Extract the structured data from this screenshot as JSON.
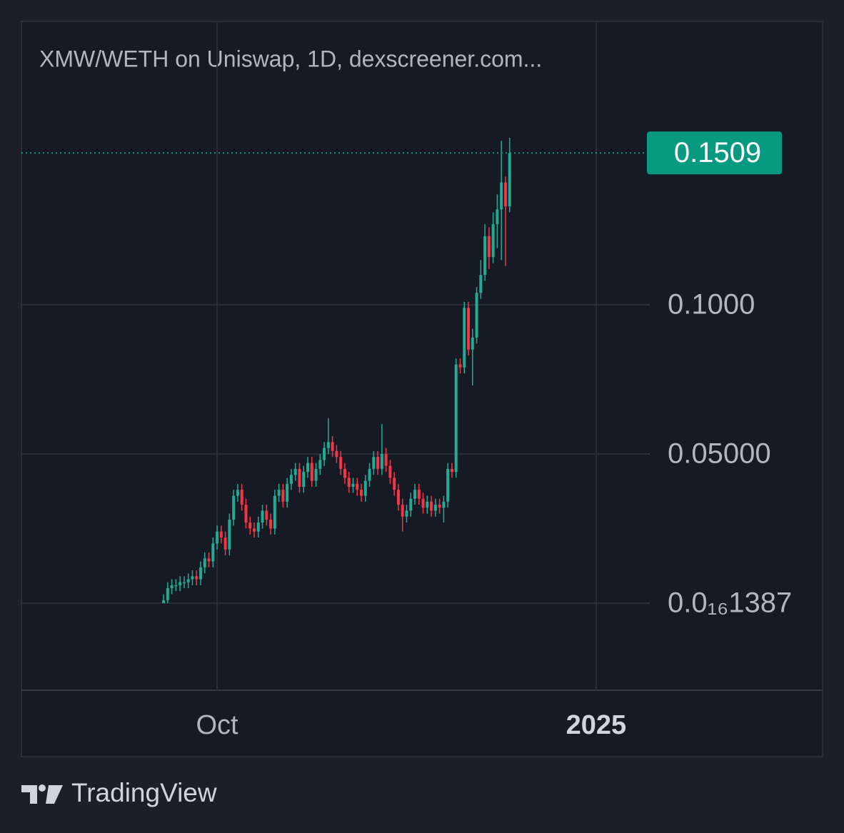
{
  "chart_data": {
    "type": "candlestick",
    "title": "XMW/WETH on Uniswap, 1D, dexscreener.com...",
    "x": [
      -13,
      -12,
      -11,
      -10,
      -9,
      -8,
      -7,
      -6,
      -5,
      -4,
      -3,
      -2,
      -1,
      0,
      1,
      2,
      3,
      4,
      5,
      6,
      7,
      8,
      9,
      10,
      11,
      12,
      13,
      14,
      15,
      16,
      17,
      18,
      19,
      20,
      21,
      22,
      23,
      24,
      25,
      26,
      27,
      28,
      29,
      30,
      31,
      32,
      33,
      34,
      35,
      36,
      37,
      38,
      39,
      40,
      41,
      42,
      43,
      44,
      45,
      46,
      47,
      48,
      49,
      50,
      51,
      52,
      53,
      54,
      55,
      56,
      57,
      58,
      59,
      60,
      61,
      62,
      63,
      64,
      65,
      66,
      67,
      68,
      69,
      70,
      71
    ],
    "open": [
      0.0,
      0.001,
      0.005,
      0.006,
      0.006,
      0.007,
      0.007,
      0.008,
      0.009,
      0.008,
      0.012,
      0.015,
      0.014,
      0.02,
      0.024,
      0.022,
      0.018,
      0.028,
      0.036,
      0.038,
      0.033,
      0.027,
      0.025,
      0.024,
      0.027,
      0.031,
      0.028,
      0.025,
      0.036,
      0.038,
      0.034,
      0.04,
      0.043,
      0.045,
      0.039,
      0.044,
      0.047,
      0.041,
      0.045,
      0.048,
      0.052,
      0.054,
      0.051,
      0.049,
      0.045,
      0.042,
      0.039,
      0.04,
      0.038,
      0.036,
      0.041,
      0.045,
      0.049,
      0.045,
      0.05,
      0.046,
      0.042,
      0.038,
      0.033,
      0.029,
      0.031,
      0.035,
      0.038,
      0.035,
      0.032,
      0.034,
      0.031,
      0.033,
      0.032,
      0.034,
      0.045,
      0.044,
      0.08,
      0.079,
      0.099,
      0.085,
      0.089,
      0.104,
      0.11,
      0.123,
      0.116,
      0.127,
      0.132,
      0.141,
      0.133
    ],
    "high": [
      0.003,
      0.007,
      0.008,
      0.008,
      0.009,
      0.009,
      0.01,
      0.011,
      0.011,
      0.014,
      0.017,
      0.017,
      0.022,
      0.026,
      0.026,
      0.024,
      0.03,
      0.038,
      0.04,
      0.04,
      0.035,
      0.029,
      0.027,
      0.029,
      0.033,
      0.033,
      0.03,
      0.038,
      0.04,
      0.04,
      0.042,
      0.045,
      0.047,
      0.047,
      0.046,
      0.049,
      0.049,
      0.047,
      0.05,
      0.054,
      0.062,
      0.056,
      0.053,
      0.051,
      0.047,
      0.044,
      0.042,
      0.042,
      0.04,
      0.043,
      0.047,
      0.051,
      0.051,
      0.06,
      0.052,
      0.048,
      0.044,
      0.04,
      0.035,
      0.033,
      0.037,
      0.04,
      0.04,
      0.037,
      0.036,
      0.036,
      0.035,
      0.035,
      0.036,
      0.047,
      0.047,
      0.082,
      0.082,
      0.101,
      0.101,
      0.092,
      0.106,
      0.115,
      0.127,
      0.126,
      0.131,
      0.137,
      0.155,
      0.143,
      0.156
    ],
    "low": [
      0.0,
      0.0,
      0.003,
      0.004,
      0.004,
      0.005,
      0.005,
      0.006,
      0.006,
      0.006,
      0.01,
      0.012,
      0.012,
      0.018,
      0.02,
      0.016,
      0.016,
      0.026,
      0.034,
      0.031,
      0.025,
      0.023,
      0.022,
      0.022,
      0.025,
      0.026,
      0.023,
      0.023,
      0.034,
      0.032,
      0.032,
      0.038,
      0.041,
      0.037,
      0.037,
      0.042,
      0.039,
      0.039,
      0.043,
      0.046,
      0.05,
      0.049,
      0.047,
      0.043,
      0.04,
      0.037,
      0.037,
      0.036,
      0.034,
      0.034,
      0.039,
      0.043,
      0.043,
      0.043,
      0.044,
      0.04,
      0.036,
      0.031,
      0.024,
      0.027,
      0.029,
      0.033,
      0.033,
      0.03,
      0.03,
      0.029,
      0.029,
      0.03,
      0.027,
      0.032,
      0.042,
      0.042,
      0.077,
      0.077,
      0.083,
      0.073,
      0.087,
      0.102,
      0.108,
      0.112,
      0.114,
      0.119,
      0.115,
      0.113,
      0.131
    ],
    "close": [
      0.001,
      0.005,
      0.006,
      0.006,
      0.007,
      0.007,
      0.008,
      0.009,
      0.008,
      0.012,
      0.015,
      0.014,
      0.02,
      0.024,
      0.022,
      0.018,
      0.028,
      0.036,
      0.038,
      0.033,
      0.027,
      0.025,
      0.024,
      0.027,
      0.031,
      0.028,
      0.025,
      0.036,
      0.038,
      0.034,
      0.04,
      0.043,
      0.045,
      0.039,
      0.044,
      0.047,
      0.041,
      0.045,
      0.048,
      0.052,
      0.054,
      0.051,
      0.049,
      0.045,
      0.042,
      0.039,
      0.04,
      0.038,
      0.036,
      0.041,
      0.045,
      0.049,
      0.045,
      0.05,
      0.046,
      0.042,
      0.038,
      0.033,
      0.029,
      0.031,
      0.035,
      0.038,
      0.035,
      0.032,
      0.034,
      0.031,
      0.033,
      0.032,
      0.034,
      0.045,
      0.044,
      0.08,
      0.079,
      0.099,
      0.085,
      0.089,
      0.104,
      0.11,
      0.123,
      0.116,
      0.127,
      0.132,
      0.141,
      0.133,
      0.1509
    ],
    "up_color": "#22ab94",
    "down_color": "#f23645",
    "last_price": 0.1509,
    "last_price_color": "#089981",
    "xlim": [
      -47.5,
      104.5
    ],
    "xticks": [
      {
        "value": 0,
        "label": "Oct"
      },
      {
        "value": 92,
        "label": "2025"
      }
    ],
    "ylim": [
      -0.0292,
      0.195
    ],
    "yticks": [
      {
        "value": 1.387e-17,
        "label": "0.0₁₆1387"
      },
      {
        "value": 0.05,
        "label": "0.05000"
      },
      {
        "value": 0.1,
        "label": "0.1000"
      }
    ],
    "grid": true
  },
  "footer": {
    "brand": "TradingView"
  }
}
